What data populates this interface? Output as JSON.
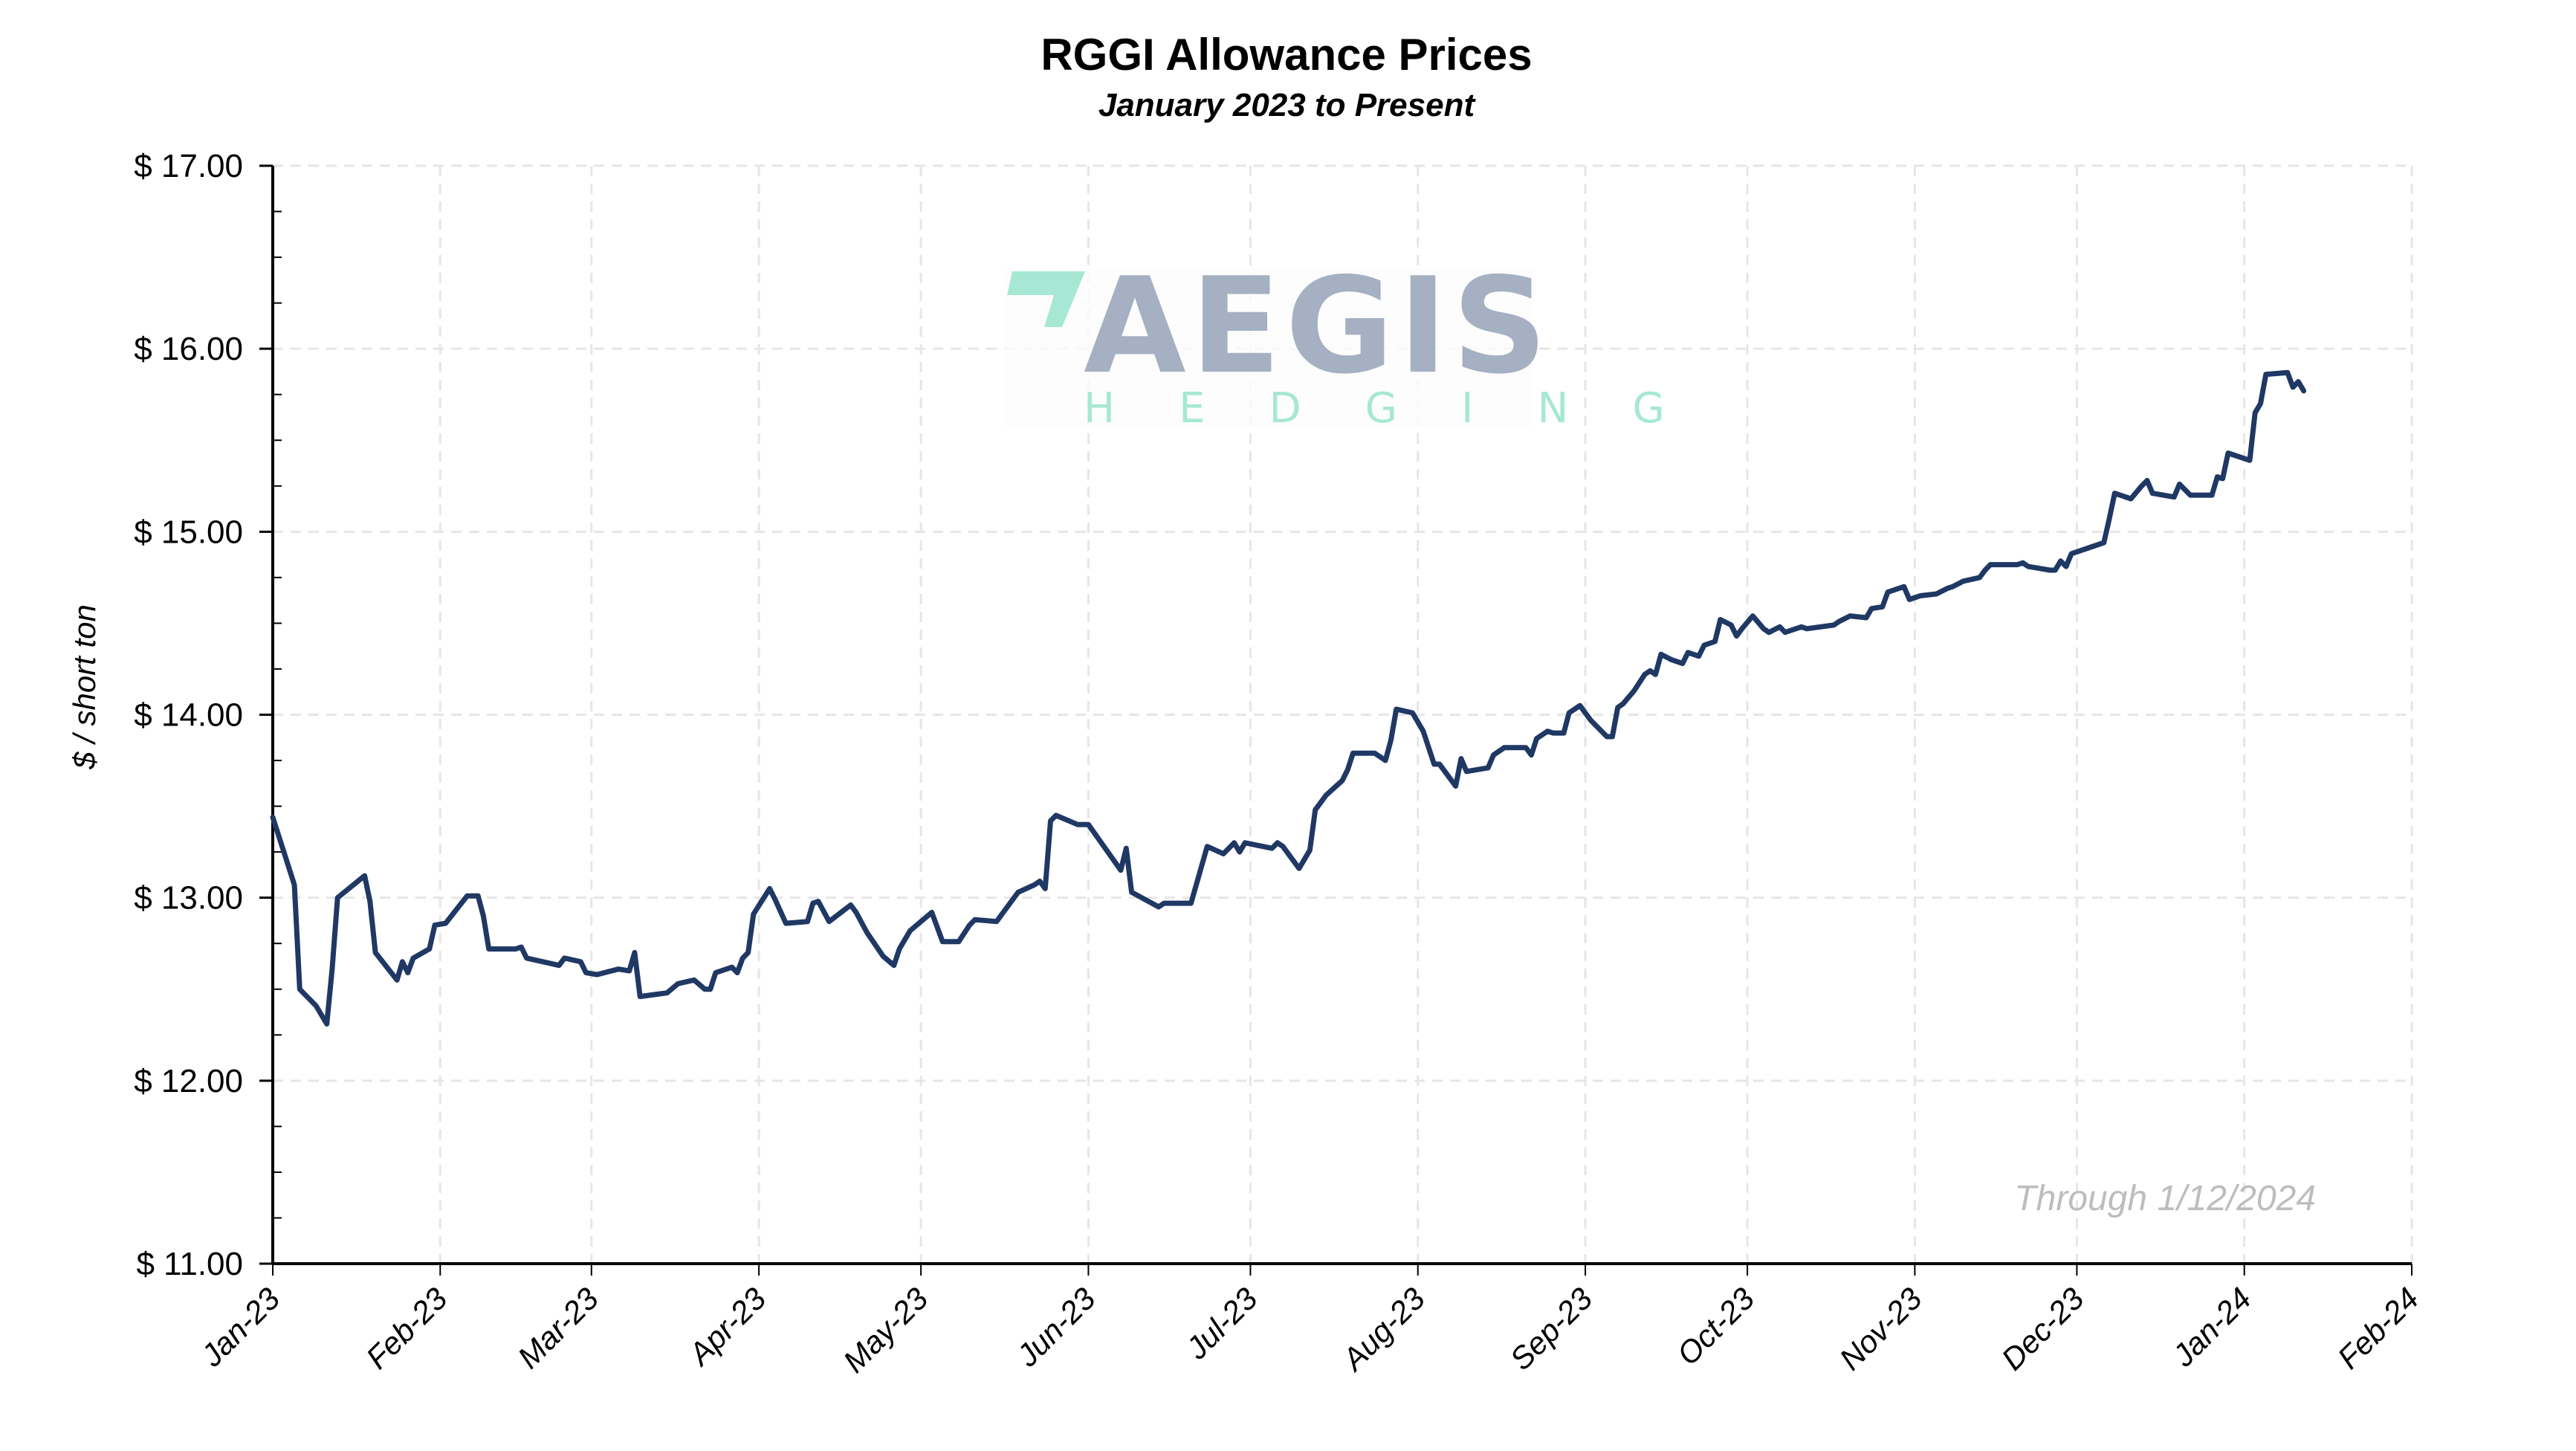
{
  "chart_data": {
    "type": "line",
    "title": "RGGI Allowance Prices",
    "subtitle": "January 2023 to Present",
    "xlabel": "",
    "ylabel": "$ / short ton",
    "annotation": "Through 1/12/2024",
    "xlim": [
      "2023-01-01",
      "2024-02-01"
    ],
    "ylim": [
      11,
      17
    ],
    "y_ticks": [
      17,
      16,
      15,
      14,
      13,
      12,
      11
    ],
    "y_tick_labels": [
      "$ 17.00",
      "$ 16.00",
      "$ 15.00",
      "$ 14.00",
      "$ 13.00",
      "$ 12.00",
      "$ 11.00"
    ],
    "y_minor_step": 0.25,
    "x_ticks": [
      "2023-01-01",
      "2023-02-01",
      "2023-03-01",
      "2023-04-01",
      "2023-05-01",
      "2023-06-01",
      "2023-07-01",
      "2023-08-01",
      "2023-09-01",
      "2023-10-01",
      "2023-11-01",
      "2023-12-01",
      "2024-01-01",
      "2024-02-01"
    ],
    "x_tick_labels": [
      "Jan-23",
      "Feb-23",
      "Mar-23",
      "Apr-23",
      "May-23",
      "Jun-23",
      "Jul-23",
      "Aug-23",
      "Sep-23",
      "Oct-23",
      "Nov-23",
      "Dec-23",
      "Jan-24",
      "Feb-24"
    ],
    "grid": true,
    "line_color": "#1f3864",
    "series": [
      {
        "points": [
          [
            "2023-01-01",
            13.44
          ],
          [
            "2023-01-05",
            13.07
          ],
          [
            "2023-01-06",
            12.5
          ],
          [
            "2023-01-09",
            12.41
          ],
          [
            "2023-01-11",
            12.31
          ],
          [
            "2023-01-12",
            12.61
          ],
          [
            "2023-01-13",
            13.0
          ],
          [
            "2023-01-18",
            13.12
          ],
          [
            "2023-01-19",
            12.98
          ],
          [
            "2023-01-20",
            12.7
          ],
          [
            "2023-01-24",
            12.55
          ],
          [
            "2023-01-25",
            12.65
          ],
          [
            "2023-01-26",
            12.59
          ],
          [
            "2023-01-27",
            12.67
          ],
          [
            "2023-01-30",
            12.72
          ],
          [
            "2023-01-31",
            12.85
          ],
          [
            "2023-02-02",
            12.86
          ],
          [
            "2023-02-06",
            13.01
          ],
          [
            "2023-02-08",
            13.01
          ],
          [
            "2023-02-09",
            12.9
          ],
          [
            "2023-02-10",
            12.72
          ],
          [
            "2023-02-15",
            12.72
          ],
          [
            "2023-02-16",
            12.73
          ],
          [
            "2023-02-17",
            12.67
          ],
          [
            "2023-02-23",
            12.63
          ],
          [
            "2023-02-24",
            12.67
          ],
          [
            "2023-02-27",
            12.65
          ],
          [
            "2023-02-28",
            12.59
          ],
          [
            "2023-03-02",
            12.58
          ],
          [
            "2023-03-06",
            12.61
          ],
          [
            "2023-03-08",
            12.6
          ],
          [
            "2023-03-09",
            12.7
          ],
          [
            "2023-03-10",
            12.46
          ],
          [
            "2023-03-15",
            12.48
          ],
          [
            "2023-03-17",
            12.53
          ],
          [
            "2023-03-20",
            12.55
          ],
          [
            "2023-03-22",
            12.5
          ],
          [
            "2023-03-23",
            12.5
          ],
          [
            "2023-03-24",
            12.59
          ],
          [
            "2023-03-27",
            12.62
          ],
          [
            "2023-03-28",
            12.59
          ],
          [
            "2023-03-29",
            12.67
          ],
          [
            "2023-03-30",
            12.7
          ],
          [
            "2023-03-31",
            12.91
          ],
          [
            "2023-04-03",
            13.05
          ],
          [
            "2023-04-04",
            12.99
          ],
          [
            "2023-04-06",
            12.86
          ],
          [
            "2023-04-10",
            12.87
          ],
          [
            "2023-04-11",
            12.97
          ],
          [
            "2023-04-12",
            12.98
          ],
          [
            "2023-04-14",
            12.87
          ],
          [
            "2023-04-18",
            12.96
          ],
          [
            "2023-04-19",
            12.92
          ],
          [
            "2023-04-21",
            12.81
          ],
          [
            "2023-04-24",
            12.68
          ],
          [
            "2023-04-26",
            12.63
          ],
          [
            "2023-04-27",
            12.72
          ],
          [
            "2023-04-29",
            12.82
          ],
          [
            "2023-05-03",
            12.92
          ],
          [
            "2023-05-05",
            12.76
          ],
          [
            "2023-05-08",
            12.76
          ],
          [
            "2023-05-10",
            12.85
          ],
          [
            "2023-05-11",
            12.88
          ],
          [
            "2023-05-15",
            12.87
          ],
          [
            "2023-05-16",
            12.91
          ],
          [
            "2023-05-19",
            13.03
          ],
          [
            "2023-05-22",
            13.07
          ],
          [
            "2023-05-23",
            13.09
          ],
          [
            "2023-05-24",
            13.05
          ],
          [
            "2023-05-25",
            13.42
          ],
          [
            "2023-05-26",
            13.45
          ],
          [
            "2023-05-30",
            13.4
          ],
          [
            "2023-06-01",
            13.4
          ],
          [
            "2023-06-07",
            13.15
          ],
          [
            "2023-06-08",
            13.27
          ],
          [
            "2023-06-09",
            13.03
          ],
          [
            "2023-06-14",
            12.95
          ],
          [
            "2023-06-15",
            12.97
          ],
          [
            "2023-06-20",
            12.97
          ],
          [
            "2023-06-23",
            13.28
          ],
          [
            "2023-06-26",
            13.24
          ],
          [
            "2023-06-28",
            13.3
          ],
          [
            "2023-06-29",
            13.25
          ],
          [
            "2023-06-30",
            13.3
          ],
          [
            "2023-07-05",
            13.27
          ],
          [
            "2023-07-06",
            13.3
          ],
          [
            "2023-07-07",
            13.28
          ],
          [
            "2023-07-10",
            13.16
          ],
          [
            "2023-07-12",
            13.26
          ],
          [
            "2023-07-13",
            13.48
          ],
          [
            "2023-07-15",
            13.56
          ],
          [
            "2023-07-18",
            13.64
          ],
          [
            "2023-07-19",
            13.7
          ],
          [
            "2023-07-20",
            13.79
          ],
          [
            "2023-07-24",
            13.79
          ],
          [
            "2023-07-26",
            13.75
          ],
          [
            "2023-07-27",
            13.86
          ],
          [
            "2023-07-28",
            14.03
          ],
          [
            "2023-07-31",
            14.01
          ],
          [
            "2023-08-02",
            13.91
          ],
          [
            "2023-08-04",
            13.73
          ],
          [
            "2023-08-05",
            13.73
          ],
          [
            "2023-08-08",
            13.61
          ],
          [
            "2023-08-09",
            13.76
          ],
          [
            "2023-08-10",
            13.69
          ],
          [
            "2023-08-14",
            13.71
          ],
          [
            "2023-08-15",
            13.78
          ],
          [
            "2023-08-17",
            13.82
          ],
          [
            "2023-08-21",
            13.82
          ],
          [
            "2023-08-22",
            13.78
          ],
          [
            "2023-08-23",
            13.87
          ],
          [
            "2023-08-24",
            13.89
          ],
          [
            "2023-08-25",
            13.91
          ],
          [
            "2023-08-26",
            13.9
          ],
          [
            "2023-08-28",
            13.9
          ],
          [
            "2023-08-29",
            14.01
          ],
          [
            "2023-08-31",
            14.05
          ],
          [
            "2023-09-02",
            13.97
          ],
          [
            "2023-09-05",
            13.88
          ],
          [
            "2023-09-06",
            13.88
          ],
          [
            "2023-09-07",
            14.04
          ],
          [
            "2023-09-08",
            14.06
          ],
          [
            "2023-09-10",
            14.13
          ],
          [
            "2023-09-12",
            14.22
          ],
          [
            "2023-09-13",
            14.24
          ],
          [
            "2023-09-14",
            14.22
          ],
          [
            "2023-09-15",
            14.33
          ],
          [
            "2023-09-17",
            14.3
          ],
          [
            "2023-09-19",
            14.28
          ],
          [
            "2023-09-20",
            14.34
          ],
          [
            "2023-09-22",
            14.32
          ],
          [
            "2023-09-23",
            14.38
          ],
          [
            "2023-09-25",
            14.4
          ],
          [
            "2023-09-26",
            14.52
          ],
          [
            "2023-09-28",
            14.49
          ],
          [
            "2023-09-29",
            14.43
          ],
          [
            "2023-09-30",
            14.47
          ],
          [
            "2023-10-02",
            14.54
          ],
          [
            "2023-10-04",
            14.47
          ],
          [
            "2023-10-05",
            14.45
          ],
          [
            "2023-10-07",
            14.48
          ],
          [
            "2023-10-08",
            14.45
          ],
          [
            "2023-10-11",
            14.48
          ],
          [
            "2023-10-12",
            14.47
          ],
          [
            "2023-10-17",
            14.49
          ],
          [
            "2023-10-18",
            14.51
          ],
          [
            "2023-10-20",
            14.54
          ],
          [
            "2023-10-23",
            14.53
          ],
          [
            "2023-10-24",
            14.58
          ],
          [
            "2023-10-26",
            14.59
          ],
          [
            "2023-10-27",
            14.67
          ],
          [
            "2023-10-30",
            14.7
          ],
          [
            "2023-10-31",
            14.63
          ],
          [
            "2023-11-01",
            14.64
          ],
          [
            "2023-11-02",
            14.65
          ],
          [
            "2023-11-05",
            14.66
          ],
          [
            "2023-11-07",
            14.69
          ],
          [
            "2023-11-08",
            14.7
          ],
          [
            "2023-11-10",
            14.73
          ],
          [
            "2023-11-13",
            14.75
          ],
          [
            "2023-11-14",
            14.79
          ],
          [
            "2023-11-15",
            14.82
          ],
          [
            "2023-11-20",
            14.82
          ],
          [
            "2023-11-21",
            14.83
          ],
          [
            "2023-11-22",
            14.81
          ],
          [
            "2023-11-26",
            14.79
          ],
          [
            "2023-11-27",
            14.79
          ],
          [
            "2023-11-28",
            14.84
          ],
          [
            "2023-11-29",
            14.81
          ],
          [
            "2023-11-30",
            14.88
          ],
          [
            "2023-12-04",
            14.92
          ],
          [
            "2023-12-06",
            14.94
          ],
          [
            "2023-12-07",
            15.07
          ],
          [
            "2023-12-08",
            15.21
          ],
          [
            "2023-12-11",
            15.18
          ],
          [
            "2023-12-13",
            15.25
          ],
          [
            "2023-12-14",
            15.28
          ],
          [
            "2023-12-15",
            15.21
          ],
          [
            "2023-12-19",
            15.19
          ],
          [
            "2023-12-20",
            15.26
          ],
          [
            "2023-12-22",
            15.2
          ],
          [
            "2023-12-26",
            15.2
          ],
          [
            "2023-12-27",
            15.3
          ],
          [
            "2023-12-28",
            15.29
          ],
          [
            "2023-12-29",
            15.43
          ],
          [
            "2024-01-02",
            15.39
          ],
          [
            "2024-01-03",
            15.65
          ],
          [
            "2024-01-04",
            15.7
          ],
          [
            "2024-01-05",
            15.86
          ],
          [
            "2024-01-09",
            15.87
          ],
          [
            "2024-01-10",
            15.79
          ],
          [
            "2024-01-11",
            15.82
          ],
          [
            "2024-01-12",
            15.77
          ]
        ]
      }
    ]
  },
  "logo": {
    "name": "AEGIS",
    "tagline": "HEDGING",
    "mark_color": "#a6e8d3",
    "text_color": "#a5b0c2"
  }
}
